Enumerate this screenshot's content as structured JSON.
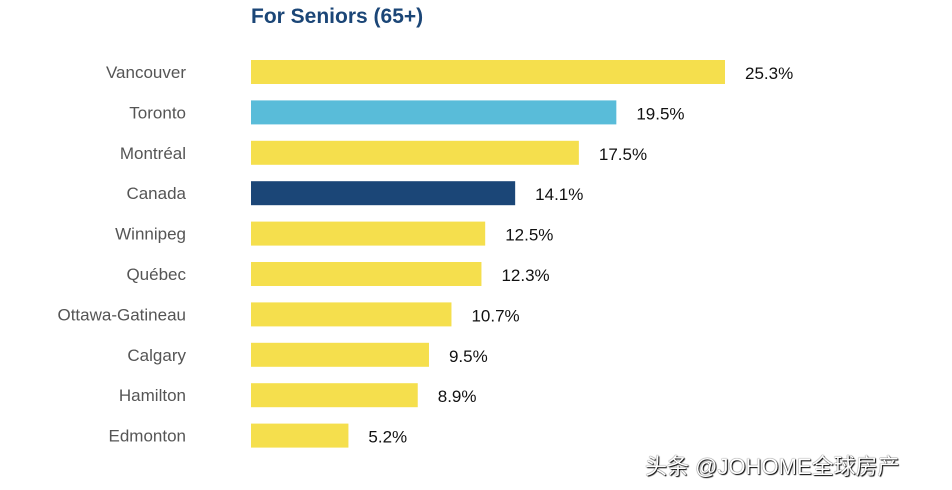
{
  "chart_data": {
    "type": "bar",
    "orientation": "horizontal",
    "title": "For Seniors (65+)",
    "categories": [
      "Vancouver",
      "Toronto",
      "Montréal",
      "Canada",
      "Winnipeg",
      "Québec",
      "Ottawa-Gatineau",
      "Calgary",
      "Hamilton",
      "Edmonton"
    ],
    "values": [
      25.3,
      19.5,
      17.5,
      14.1,
      12.5,
      12.3,
      10.7,
      9.5,
      8.9,
      5.2
    ],
    "value_labels": [
      "25.3%",
      "19.5%",
      "17.5%",
      "14.1%",
      "12.5%",
      "12.3%",
      "10.7%",
      "9.5%",
      "8.9%",
      "5.2%"
    ],
    "colors": [
      "#f5df4d",
      "#59bcd9",
      "#f5df4d",
      "#1b4677",
      "#f5df4d",
      "#f5df4d",
      "#f5df4d",
      "#f5df4d",
      "#f5df4d",
      "#f5df4d"
    ],
    "xlabel": "",
    "ylabel": "",
    "xlim": [
      0,
      25.3
    ],
    "grid": false
  },
  "watermark": "头条 @JOHOME全球房产"
}
